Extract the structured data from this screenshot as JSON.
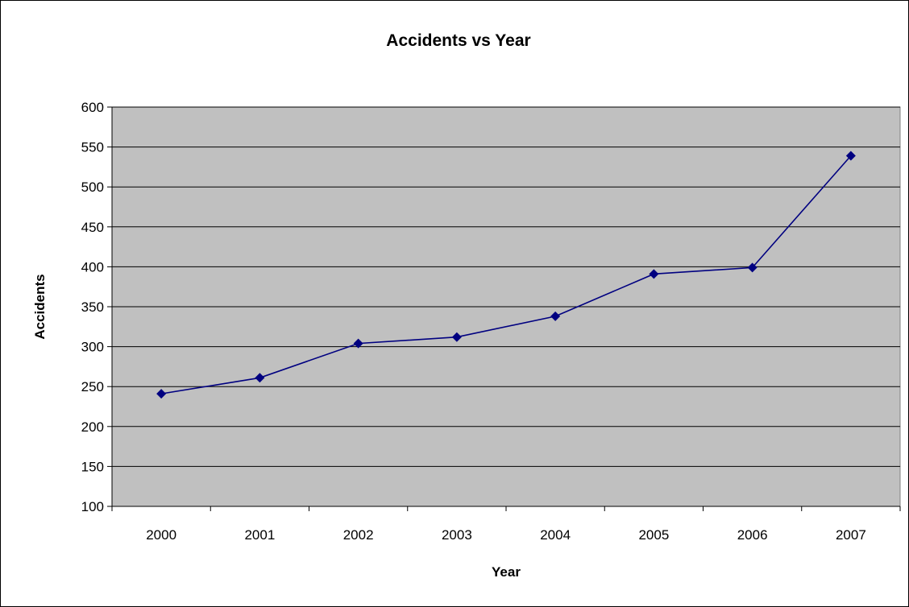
{
  "colors": {
    "plot_background": "#c0c0c0",
    "series_line": "#000080",
    "gridline": "#000000"
  },
  "chart_data": {
    "type": "line",
    "title": "Accidents vs Year",
    "xlabel": "Year",
    "ylabel": "Accidents",
    "categories": [
      "2000",
      "2001",
      "2002",
      "2003",
      "2004",
      "2005",
      "2006",
      "2007"
    ],
    "series": [
      {
        "values": [
          241,
          261,
          304,
          312,
          338,
          391,
          399,
          539
        ]
      }
    ],
    "ylim": [
      100,
      600
    ],
    "yticks": [
      100,
      150,
      200,
      250,
      300,
      350,
      400,
      450,
      500,
      550,
      600
    ],
    "grid": true,
    "legend": "none",
    "marker": "diamond"
  }
}
